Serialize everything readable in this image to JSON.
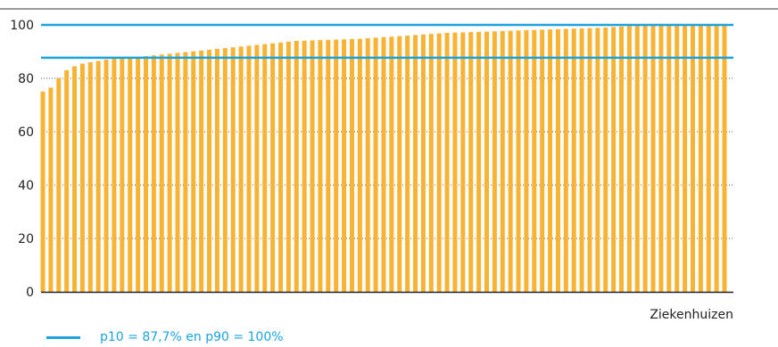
{
  "chart_data": {
    "type": "bar",
    "xlabel": "Ziekenhuizen",
    "ylabel": "",
    "ylim": [
      0,
      100
    ],
    "yticks": [
      "0",
      "20",
      "40",
      "60",
      "80",
      "100"
    ],
    "grid": "horizontal dotted",
    "bar_color": "#f7b334",
    "reference_color": "#1aa3dd",
    "categories_count": 87,
    "values": [
      75.0,
      76.5,
      80.0,
      83.0,
      84.5,
      85.5,
      86.0,
      86.5,
      87.0,
      87.3,
      87.5,
      87.7,
      88.0,
      88.3,
      88.6,
      88.9,
      89.2,
      89.5,
      89.8,
      90.1,
      90.4,
      90.7,
      91.0,
      91.3,
      91.6,
      91.9,
      92.2,
      92.5,
      92.8,
      93.1,
      93.4,
      93.7,
      94.0,
      94.1,
      94.2,
      94.3,
      94.4,
      94.5,
      94.6,
      94.7,
      94.8,
      95.0,
      95.2,
      95.4,
      95.6,
      95.8,
      96.0,
      96.2,
      96.4,
      96.6,
      96.8,
      97.0,
      97.1,
      97.2,
      97.3,
      97.4,
      97.5,
      97.6,
      97.7,
      97.8,
      97.9,
      98.0,
      98.1,
      98.2,
      98.3,
      98.4,
      98.5,
      98.6,
      98.7,
      98.8,
      98.9,
      99.0,
      99.2,
      99.4,
      99.6,
      99.8,
      99.9,
      100.0,
      100.0,
      100.0,
      100.0,
      100.0,
      100.0,
      100.0,
      100.0,
      100.0,
      100.0
    ],
    "reference_lines": [
      87.7,
      100
    ],
    "legend": [
      {
        "label": "p10 = 87,7% en p90 = 100%",
        "color": "#1aa3dd"
      }
    ]
  }
}
